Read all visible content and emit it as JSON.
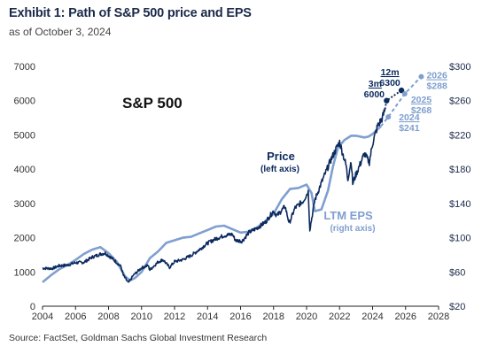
{
  "header": {
    "title": "Exhibit 1: Path of S&P 500 price and EPS",
    "subtitle": "as of October 3, 2024"
  },
  "footer": {
    "source": "Source: FactSet, Goldman Sachs Global Investment Research"
  },
  "colors": {
    "price": "#0c2a5e",
    "eps": "#7f9fcf",
    "axis_text": "#333333",
    "right_axis_text": "#1b2a4a"
  },
  "chart_data": {
    "type": "line",
    "title": "S&P 500",
    "x": {
      "ticks": [
        "2004",
        "2006",
        "2008",
        "2010",
        "2012",
        "2014",
        "2016",
        "2018",
        "2020",
        "2022",
        "2024",
        "2026",
        "2028"
      ],
      "range": [
        2004,
        2028
      ]
    },
    "y_left": {
      "ticks": [
        "0",
        "1000",
        "2000",
        "3000",
        "4000",
        "5000",
        "6000",
        "7000"
      ],
      "range": [
        0,
        7000
      ]
    },
    "y_right": {
      "ticks": [
        "$20",
        "$60",
        "$100",
        "$140",
        "$180",
        "$220",
        "$260",
        "$300"
      ],
      "range": [
        20,
        300
      ]
    },
    "grid": false,
    "series": [
      {
        "name": "Price",
        "sublabel": "(left axis)",
        "axis": "left",
        "points": [
          [
            2004.0,
            1110
          ],
          [
            2004.6,
            1100
          ],
          [
            2005.0,
            1180
          ],
          [
            2005.5,
            1200
          ],
          [
            2006.0,
            1270
          ],
          [
            2006.5,
            1280
          ],
          [
            2007.0,
            1430
          ],
          [
            2007.5,
            1520
          ],
          [
            2007.8,
            1550
          ],
          [
            2008.3,
            1360
          ],
          [
            2008.75,
            1160
          ],
          [
            2008.9,
            900
          ],
          [
            2009.2,
            680
          ],
          [
            2009.5,
            900
          ],
          [
            2010.0,
            1120
          ],
          [
            2010.4,
            1190
          ],
          [
            2010.5,
            1060
          ],
          [
            2011.0,
            1290
          ],
          [
            2011.3,
            1360
          ],
          [
            2011.7,
            1130
          ],
          [
            2012.0,
            1300
          ],
          [
            2012.5,
            1360
          ],
          [
            2013.0,
            1480
          ],
          [
            2013.5,
            1650
          ],
          [
            2014.0,
            1840
          ],
          [
            2014.5,
            1970
          ],
          [
            2015.0,
            2060
          ],
          [
            2015.5,
            2100
          ],
          [
            2015.7,
            1920
          ],
          [
            2016.1,
            1900
          ],
          [
            2016.5,
            2150
          ],
          [
            2017.0,
            2280
          ],
          [
            2017.5,
            2450
          ],
          [
            2018.0,
            2780
          ],
          [
            2018.2,
            2640
          ],
          [
            2018.7,
            2910
          ],
          [
            2018.95,
            2420
          ],
          [
            2019.3,
            2870
          ],
          [
            2019.8,
            3070
          ],
          [
            2020.1,
            3350
          ],
          [
            2020.2,
            2240
          ],
          [
            2020.5,
            3100
          ],
          [
            2020.9,
            3600
          ],
          [
            2021.2,
            3950
          ],
          [
            2021.5,
            4300
          ],
          [
            2021.9,
            4700
          ],
          [
            2022.0,
            4790
          ],
          [
            2022.4,
            4100
          ],
          [
            2022.5,
            3700
          ],
          [
            2022.7,
            4250
          ],
          [
            2022.8,
            3580
          ],
          [
            2023.0,
            3850
          ],
          [
            2023.5,
            4450
          ],
          [
            2023.8,
            4200
          ],
          [
            2024.0,
            4750
          ],
          [
            2024.3,
            5250
          ],
          [
            2024.6,
            5500
          ],
          [
            2024.75,
            5750
          ]
        ]
      },
      {
        "name": "LTM EPS",
        "sublabel": "(right axis)",
        "axis": "right",
        "points": [
          [
            2004.0,
            48
          ],
          [
            2004.5,
            56
          ],
          [
            2005.0,
            63
          ],
          [
            2005.5,
            68
          ],
          [
            2006.0,
            74
          ],
          [
            2006.5,
            81
          ],
          [
            2007.0,
            86
          ],
          [
            2007.5,
            89
          ],
          [
            2008.0,
            82
          ],
          [
            2008.5,
            72
          ],
          [
            2009.0,
            55
          ],
          [
            2009.3,
            50
          ],
          [
            2009.6,
            53
          ],
          [
            2010.0,
            60
          ],
          [
            2010.5,
            76
          ],
          [
            2011.0,
            84
          ],
          [
            2011.5,
            94
          ],
          [
            2012.0,
            97
          ],
          [
            2012.5,
            100
          ],
          [
            2013.0,
            101
          ],
          [
            2013.5,
            105
          ],
          [
            2014.0,
            109
          ],
          [
            2014.5,
            113
          ],
          [
            2015.0,
            114
          ],
          [
            2015.5,
            110
          ],
          [
            2016.0,
            106
          ],
          [
            2016.5,
            107
          ],
          [
            2017.0,
            112
          ],
          [
            2017.5,
            119
          ],
          [
            2018.0,
            128
          ],
          [
            2018.5,
            145
          ],
          [
            2019.0,
            157
          ],
          [
            2019.5,
            158
          ],
          [
            2020.0,
            162
          ],
          [
            2020.3,
            152
          ],
          [
            2020.5,
            131
          ],
          [
            2020.9,
            133
          ],
          [
            2021.3,
            155
          ],
          [
            2021.6,
            183
          ],
          [
            2021.9,
            205
          ],
          [
            2022.3,
            214
          ],
          [
            2022.7,
            219
          ],
          [
            2023.0,
            219
          ],
          [
            2023.5,
            217
          ],
          [
            2023.75,
            218
          ],
          [
            2024.0,
            221
          ],
          [
            2024.5,
            230
          ]
        ]
      }
    ],
    "price_projection": {
      "points": [
        [
          2024.75,
          5750
        ],
        [
          2024.85,
          6000
        ],
        [
          2025.75,
          6300
        ]
      ],
      "markers": [
        {
          "period": "3m",
          "value": "6000",
          "x": 2024.85,
          "y": 6000
        },
        {
          "period": "12m",
          "value": "6300",
          "x": 2025.75,
          "y": 6300
        }
      ]
    },
    "eps_projection": {
      "points": [
        [
          2024.5,
          230
        ],
        [
          2024.95,
          241
        ],
        [
          2025.95,
          268
        ],
        [
          2026.95,
          288
        ]
      ],
      "markers": [
        {
          "year": "2024",
          "value": "$241",
          "x": 2024.95,
          "y": 241
        },
        {
          "year": "2025",
          "value": "$268",
          "x": 2025.95,
          "y": 268
        },
        {
          "year": "2026",
          "value": "$288",
          "x": 2026.95,
          "y": 288
        }
      ]
    }
  }
}
